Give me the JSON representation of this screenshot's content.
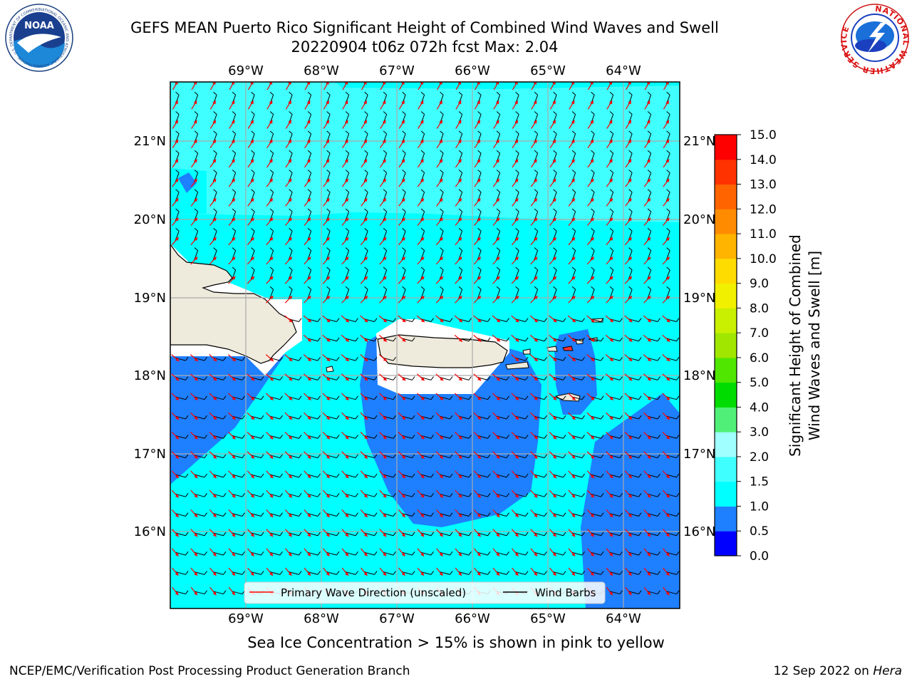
{
  "header": {
    "title_line1": "GEFS MEAN Puerto Rico Significant Height of Combined Wind Waves and Swell",
    "title_line2": "20220904 t06z 072h fcst   Max: 2.04"
  },
  "logos": {
    "noaa": {
      "icon": "noaa-logo-icon",
      "text": "NOAA",
      "ring_text": "NATIONAL OCEANIC AND ATMOSPHERIC ADMINISTRATION · U.S. DEPARTMENT OF COMMERCE"
    },
    "nws": {
      "icon": "nws-logo-icon",
      "ring_text": "NATIONAL WEATHER SERVICE"
    }
  },
  "map": {
    "lon_labels": [
      "69°W",
      "68°W",
      "67°W",
      "66°W",
      "65°W",
      "64°W"
    ],
    "lat_labels": [
      "21°N",
      "20°N",
      "19°N",
      "18°N",
      "17°N",
      "16°N"
    ],
    "legend": {
      "wave_direction_label": "Primary Wave Direction (unscaled)",
      "wind_barbs_label": "Wind Barbs",
      "wave_direction_color": "#ff0000",
      "wind_barbs_color": "#000000"
    },
    "colors": {
      "land": "#eeeadc",
      "level_0_5_1_0": "#1e7fff",
      "level_1_0_1_5": "#00ffff",
      "level_1_5_2_0": "#40ffff"
    }
  },
  "colorbar": {
    "label_line1": "Significant Height of Combined",
    "label_line2": "Wind Waves and Swell [m]",
    "ticks": [
      "0.0",
      "0.5",
      "1.0",
      "1.5",
      "2.0",
      "3.0",
      "4.0",
      "5.0",
      "6.0",
      "7.0",
      "8.0",
      "9.0",
      "10.0",
      "11.0",
      "12.0",
      "13.0",
      "14.0",
      "15.0"
    ],
    "colors": [
      "#0000ff",
      "#1e7fff",
      "#00ffff",
      "#40ffff",
      "#a0ffff",
      "#50f078",
      "#00dc00",
      "#50e600",
      "#a0e600",
      "#c8f000",
      "#f0f000",
      "#ffdc00",
      "#ffb400",
      "#ff8c00",
      "#ff6400",
      "#ff3200",
      "#ff0000"
    ]
  },
  "caption": "Sea Ice Concentration > 15% is shown in pink to yellow",
  "footer": {
    "left": "NCEP/EMC/Verification Post Processing Product Generation Branch",
    "right_prefix": "12 Sep 2022 on ",
    "right_host": "Hera"
  }
}
